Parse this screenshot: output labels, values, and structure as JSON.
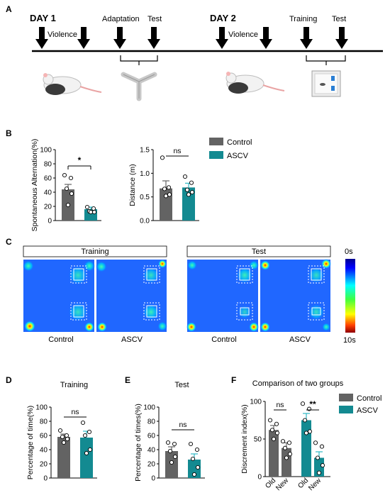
{
  "panel_labels": {
    "a": "A",
    "b": "B",
    "c": "C",
    "d": "D",
    "e": "E",
    "f": "F"
  },
  "timeline": {
    "day1": "DAY 1",
    "day2": "DAY 2",
    "violence": "Violence",
    "adaptation": "Adaptation",
    "test": "Test",
    "training": "Training"
  },
  "legend": {
    "control": "Control",
    "ascv": "ASCV"
  },
  "colors": {
    "control": "#636363",
    "ascv": "#138a91",
    "accent": "#2fb8c4"
  },
  "heatmap": {
    "group_training": "Training",
    "group_test": "Test",
    "label_control": "Control",
    "label_ascv": "ASCV",
    "scale_top": "0s",
    "scale_bottom": "10s"
  },
  "chart_data": [
    {
      "id": "B1",
      "type": "bar",
      "ylabel": "Spontaneous Alternation(%)",
      "ylim": [
        0,
        100
      ],
      "yticks": [
        0,
        20,
        40,
        60,
        80,
        100
      ],
      "categories": [
        "Control",
        "ASCV"
      ],
      "values": [
        44,
        16
      ],
      "errors": [
        7,
        3
      ],
      "points": [
        [
          64,
          60,
          45,
          38,
          22
        ],
        [
          19,
          17,
          13,
          12,
          12
        ]
      ],
      "significance": [
        {
          "from": 0,
          "to": 1,
          "label": "*"
        }
      ]
    },
    {
      "id": "B2",
      "type": "bar",
      "ylabel": "Distance (m)",
      "ylim": [
        0,
        1.5
      ],
      "yticks": [
        "0.0",
        "0.5",
        "1.0",
        "1.5"
      ],
      "categories": [
        "Control",
        "ASCV"
      ],
      "values": [
        0.68,
        0.7
      ],
      "errors": [
        0.16,
        0.09
      ],
      "points": [
        [
          1.33,
          0.7,
          0.67,
          0.55,
          0.52
        ],
        [
          0.93,
          0.8,
          0.65,
          0.6,
          0.55
        ]
      ],
      "significance": [
        {
          "from": 0,
          "to": 1,
          "label": "ns"
        }
      ]
    },
    {
      "id": "D",
      "type": "bar",
      "title": "Training",
      "ylabel": "Percentage of time(%)",
      "ylim": [
        0,
        100
      ],
      "yticks": [
        0,
        20,
        40,
        60,
        80,
        100
      ],
      "categories": [
        "Control",
        "ASCV"
      ],
      "values": [
        58,
        57
      ],
      "errors": [
        4,
        9
      ],
      "points": [
        [
          67,
          60,
          58,
          55,
          50
        ],
        [
          78,
          65,
          60,
          40,
          35
        ]
      ],
      "significance": [
        {
          "from": 0,
          "to": 1,
          "label": "ns"
        }
      ]
    },
    {
      "id": "E",
      "type": "bar",
      "title": "Test",
      "ylabel": "Percentage of times(%)",
      "ylim": [
        0,
        100
      ],
      "yticks": [
        0,
        20,
        40,
        60,
        80,
        100
      ],
      "categories": [
        "Control",
        "ASCV"
      ],
      "values": [
        38,
        26
      ],
      "errors": [
        6,
        8
      ],
      "points": [
        [
          50,
          48,
          38,
          30,
          22
        ],
        [
          48,
          40,
          27,
          15,
          5
        ]
      ],
      "significance": [
        {
          "from": 0,
          "to": 1,
          "label": "ns"
        }
      ]
    },
    {
      "id": "F",
      "type": "bar",
      "title": "Comparison of two groups",
      "ylabel": "Discrement index(%)",
      "ylim": [
        0,
        100
      ],
      "yticks": [
        0,
        50,
        100
      ],
      "categories": [
        "Old",
        "New",
        "Old",
        "New"
      ],
      "groups": [
        "Control",
        "Control",
        "ASCV",
        "ASCV"
      ],
      "values": [
        62,
        38,
        75,
        25
      ],
      "errors": [
        6,
        7,
        9,
        8
      ],
      "points": [
        [
          75,
          70,
          62,
          58,
          50
        ],
        [
          47,
          45,
          38,
          30,
          25
        ],
        [
          97,
          90,
          75,
          60,
          58
        ],
        [
          45,
          40,
          25,
          15,
          5
        ]
      ],
      "significance": [
        {
          "from": 0,
          "to": 1,
          "label": "ns"
        },
        {
          "from": 2,
          "to": 3,
          "label": "**"
        }
      ]
    }
  ]
}
